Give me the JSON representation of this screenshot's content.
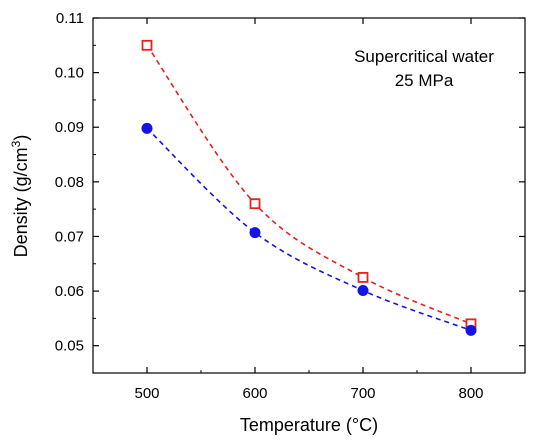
{
  "chart_data": {
    "type": "scatter",
    "xlabel": "Temperature (°C)",
    "ylabel_main": "Density (g/cm",
    "ylabel_sup": "3",
    "ylabel_close": ")",
    "xlim": [
      450,
      850
    ],
    "ylim": [
      0.045,
      0.11
    ],
    "xticks": [
      500,
      600,
      700,
      800
    ],
    "yticks": [
      "0.05",
      "0.06",
      "0.07",
      "0.08",
      "0.09",
      "0.10",
      "0.11"
    ],
    "annotations": [
      "Supercritical water",
      "25 MPa"
    ],
    "grid": false,
    "series": [
      {
        "marker": "open-square",
        "color": "#e8211c",
        "line": "dashed",
        "x": [
          500,
          600,
          700,
          800
        ],
        "y": [
          0.105,
          0.076,
          0.0625,
          0.054
        ]
      },
      {
        "marker": "filled-circle",
        "color": "#1414e6",
        "line": "dashed",
        "x": [
          500,
          600,
          700,
          800
        ],
        "y": [
          0.0898,
          0.0707,
          0.0601,
          0.0528
        ]
      }
    ]
  }
}
